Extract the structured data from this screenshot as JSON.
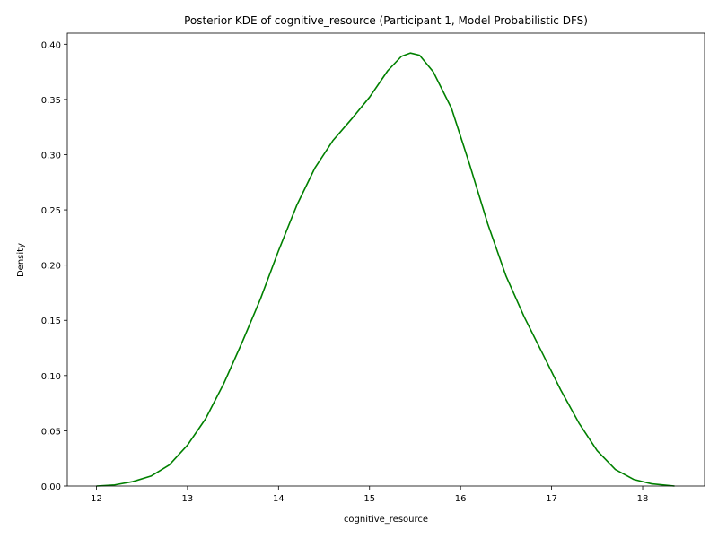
{
  "chart_data": {
    "type": "line",
    "title": "Posterior KDE of cognitive_resource (Participant 1, Model Probabilistic DFS)",
    "xlabel": "cognitive_resource",
    "ylabel": "Density",
    "xlim": [
      11.68,
      18.68
    ],
    "ylim": [
      0.0,
      0.41
    ],
    "xticks": [
      12,
      13,
      14,
      15,
      16,
      17,
      18
    ],
    "yticks": [
      0.0,
      0.05,
      0.1,
      0.15,
      0.2,
      0.25,
      0.3,
      0.35,
      0.4
    ],
    "xtick_labels": [
      "12",
      "13",
      "14",
      "15",
      "16",
      "17",
      "18"
    ],
    "ytick_labels": [
      "0.00",
      "0.05",
      "0.10",
      "0.15",
      "0.20",
      "0.25",
      "0.30",
      "0.35",
      "0.40"
    ],
    "grid": false,
    "line_color": "#008000",
    "series": [
      {
        "x": [
          12.0,
          12.2,
          12.4,
          12.6,
          12.8,
          13.0,
          13.2,
          13.4,
          13.6,
          13.8,
          14.0,
          14.2,
          14.4,
          14.6,
          14.8,
          15.0,
          15.2,
          15.35,
          15.45,
          15.55,
          15.7,
          15.9,
          16.1,
          16.3,
          16.5,
          16.7,
          16.9,
          17.1,
          17.3,
          17.5,
          17.7,
          17.9,
          18.1,
          18.35
        ],
        "values": [
          0.0,
          0.001,
          0.004,
          0.009,
          0.019,
          0.037,
          0.061,
          0.093,
          0.13,
          0.169,
          0.213,
          0.254,
          0.288,
          0.313,
          0.332,
          0.352,
          0.376,
          0.389,
          0.392,
          0.39,
          0.375,
          0.342,
          0.291,
          0.237,
          0.19,
          0.153,
          0.12,
          0.087,
          0.057,
          0.032,
          0.015,
          0.006,
          0.002,
          0.0
        ]
      }
    ]
  }
}
